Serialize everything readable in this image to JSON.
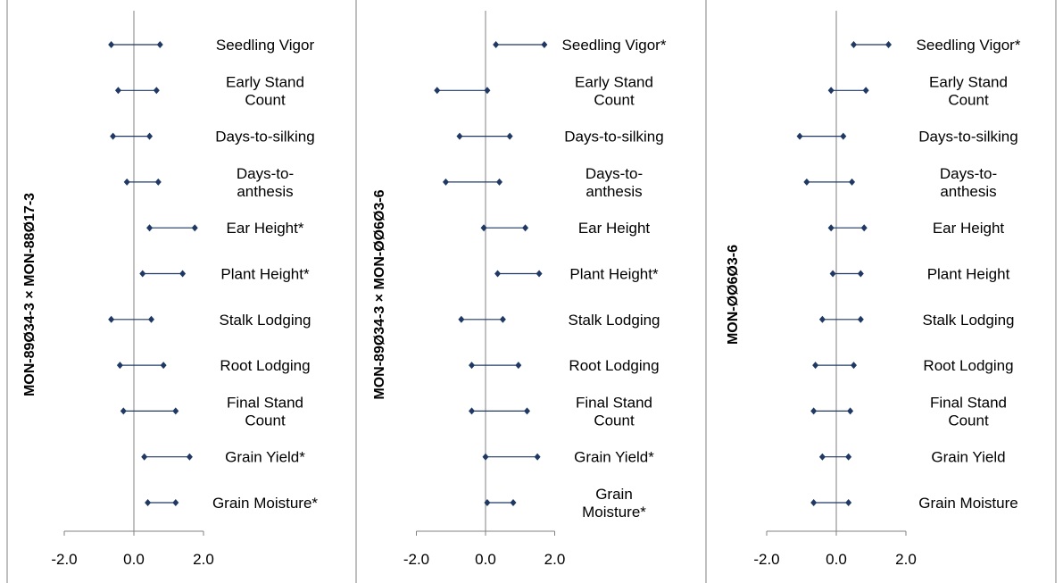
{
  "colors": {
    "series": "#1f3864",
    "axis": "#808080",
    "panel_border": "#7f7f7f",
    "text": "#000000"
  },
  "chart_data": [
    {
      "type": "forest",
      "ylabel": "MON-89Ø34-3 × MON-88Ø17-3",
      "xlim": [
        -2.0,
        2.0
      ],
      "xticks": [
        "-2.0",
        "0.0",
        "2.0"
      ],
      "traits": [
        {
          "label": "Seedling Vigor",
          "lower": -0.65,
          "upper": 0.75
        },
        {
          "label": "Early Stand Count",
          "lower": -0.45,
          "upper": 0.65
        },
        {
          "label": "Days-to-silking",
          "lower": -0.6,
          "upper": 0.45
        },
        {
          "label": "Days-to- anthesis",
          "lower": -0.2,
          "upper": 0.7
        },
        {
          "label": "Ear Height*",
          "lower": 0.45,
          "upper": 1.75
        },
        {
          "label": "Plant Height*",
          "lower": 0.25,
          "upper": 1.4
        },
        {
          "label": "Stalk Lodging",
          "lower": -0.65,
          "upper": 0.5
        },
        {
          "label": "Root Lodging",
          "lower": -0.4,
          "upper": 0.85
        },
        {
          "label": "Final Stand Count",
          "lower": -0.3,
          "upper": 1.2
        },
        {
          "label": "Grain Yield*",
          "lower": 0.3,
          "upper": 1.6
        },
        {
          "label": "Grain Moisture*",
          "lower": 0.4,
          "upper": 1.2
        }
      ]
    },
    {
      "type": "forest",
      "ylabel": "MON-89Ø34-3 × MON-ØØ6Ø3-6",
      "xlim": [
        -2.0,
        2.0
      ],
      "xticks": [
        "-2.0",
        "0.0",
        "2.0"
      ],
      "traits": [
        {
          "label": "Seedling Vigor*",
          "lower": 0.3,
          "upper": 1.7
        },
        {
          "label": "Early Stand Count",
          "lower": -1.4,
          "upper": 0.05
        },
        {
          "label": "Days-to-silking",
          "lower": -0.75,
          "upper": 0.7
        },
        {
          "label": "Days-to- anthesis",
          "lower": -1.15,
          "upper": 0.4
        },
        {
          "label": "Ear Height",
          "lower": -0.05,
          "upper": 1.15
        },
        {
          "label": "Plant Height*",
          "lower": 0.35,
          "upper": 1.55
        },
        {
          "label": "Stalk Lodging",
          "lower": -0.7,
          "upper": 0.5
        },
        {
          "label": "Root Lodging",
          "lower": -0.4,
          "upper": 0.95
        },
        {
          "label": "Final Stand Count",
          "lower": -0.4,
          "upper": 1.2
        },
        {
          "label": "Grain Yield*",
          "lower": 0.0,
          "upper": 1.5
        },
        {
          "label": "Grain Moisture*",
          "lower": 0.05,
          "upper": 0.8
        }
      ]
    },
    {
      "type": "forest",
      "ylabel": "MON-ØØ6Ø3-6",
      "xlim": [
        -2.0,
        2.0
      ],
      "xticks": [
        "-2.0",
        "0.0",
        "2.0"
      ],
      "traits": [
        {
          "label": "Seedling Vigor*",
          "lower": 0.5,
          "upper": 1.5
        },
        {
          "label": "Early Stand Count",
          "lower": -0.15,
          "upper": 0.85
        },
        {
          "label": "Days-to-silking",
          "lower": -1.05,
          "upper": 0.2
        },
        {
          "label": "Days-to- anthesis",
          "lower": -0.85,
          "upper": 0.45
        },
        {
          "label": "Ear Height",
          "lower": -0.15,
          "upper": 0.8
        },
        {
          "label": "Plant Height",
          "lower": -0.1,
          "upper": 0.7
        },
        {
          "label": "Stalk Lodging",
          "lower": -0.4,
          "upper": 0.7
        },
        {
          "label": "Root Lodging",
          "lower": -0.6,
          "upper": 0.5
        },
        {
          "label": "Final Stand Count",
          "lower": -0.65,
          "upper": 0.4
        },
        {
          "label": "Grain Yield",
          "lower": -0.4,
          "upper": 0.35
        },
        {
          "label": "Grain Moisture",
          "lower": -0.65,
          "upper": 0.35
        }
      ]
    }
  ]
}
